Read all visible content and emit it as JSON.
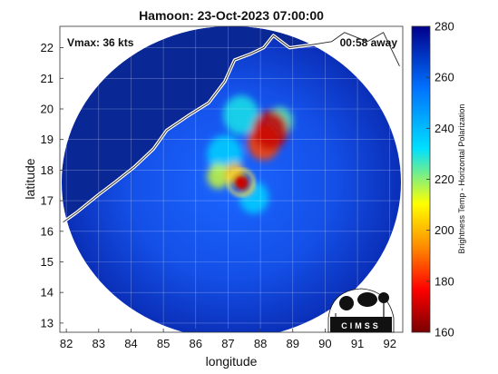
{
  "title": "Hamoon: 23-Oct-2023 07:00:00",
  "vmax_label": "Vmax: 36 kts",
  "time_away": "00:58 away",
  "xlabel": "longitude",
  "ylabel": "latitude",
  "colorbar": {
    "label": "Brightness Temp - Horizontal Polarization",
    "min": 160,
    "max": 280,
    "ticks": [
      "160",
      "180",
      "200",
      "220",
      "240",
      "260",
      "280"
    ],
    "colors": [
      "#7a0000",
      "#ff0000",
      "#ff8c00",
      "#ffff00",
      "#00e0ff",
      "#0070ff",
      "#00008b"
    ]
  },
  "map": {
    "lon_range": [
      81.8,
      92.4
    ],
    "lat_range": [
      12.7,
      22.7
    ],
    "lon_ticks": [
      "82",
      "83",
      "84",
      "85",
      "86",
      "87",
      "88",
      "89",
      "90",
      "91",
      "92"
    ],
    "lat_ticks": [
      "13",
      "14",
      "15",
      "16",
      "17",
      "18",
      "19",
      "20",
      "21",
      "22"
    ],
    "swath_center": {
      "lon": 87.1,
      "lat": 17.6
    },
    "storm_center": {
      "lon": 87.4,
      "lat": 17.6
    },
    "coastline": [
      [
        81.9,
        16.3
      ],
      [
        82.3,
        16.6
      ],
      [
        83.0,
        17.2
      ],
      [
        83.5,
        17.6
      ],
      [
        84.1,
        18.1
      ],
      [
        84.7,
        18.7
      ],
      [
        85.1,
        19.3
      ],
      [
        85.8,
        19.8
      ],
      [
        86.4,
        20.2
      ],
      [
        86.9,
        20.9
      ],
      [
        87.2,
        21.6
      ],
      [
        87.7,
        21.8
      ],
      [
        88.1,
        22.0
      ],
      [
        88.4,
        22.4
      ],
      [
        88.9,
        22.0
      ],
      [
        89.6,
        22.1
      ],
      [
        90.2,
        22.2
      ],
      [
        90.6,
        22.5
      ],
      [
        91.3,
        22.2
      ],
      [
        91.8,
        22.5
      ],
      [
        92.3,
        21.4
      ]
    ],
    "hot_spots": [
      {
        "lon": 88.3,
        "lat": 19.3,
        "temp": 170,
        "size": 0.55
      },
      {
        "lon": 88.1,
        "lat": 18.9,
        "temp": 185,
        "size": 0.5
      },
      {
        "lon": 87.5,
        "lat": 17.5,
        "temp": 165,
        "size": 0.25
      },
      {
        "lon": 87.2,
        "lat": 17.9,
        "temp": 200,
        "size": 0.3
      },
      {
        "lon": 86.7,
        "lat": 17.8,
        "temp": 215,
        "size": 0.35
      },
      {
        "lon": 87.4,
        "lat": 19.8,
        "temp": 230,
        "size": 0.55
      },
      {
        "lon": 86.9,
        "lat": 18.5,
        "temp": 235,
        "size": 0.55
      },
      {
        "lon": 87.8,
        "lat": 17.1,
        "temp": 235,
        "size": 0.45
      },
      {
        "lon": 88.6,
        "lat": 19.6,
        "temp": 225,
        "size": 0.4
      }
    ],
    "logo_text": "CIMSS"
  }
}
